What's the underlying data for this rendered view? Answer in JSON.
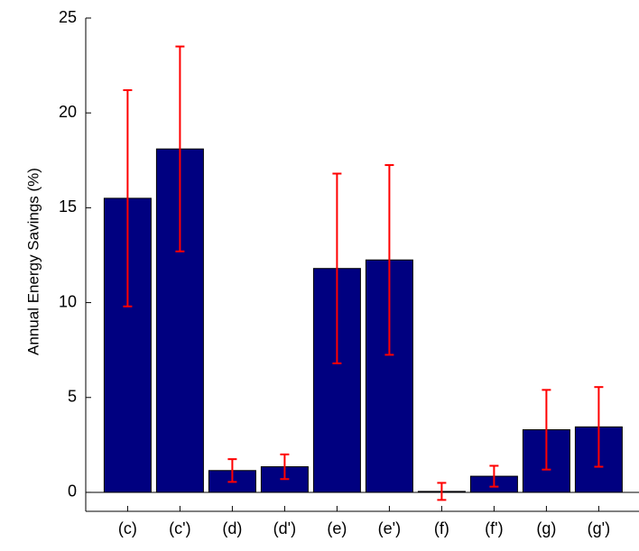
{
  "chart_data": {
    "type": "bar",
    "y_label": "Annual Energy Savings (%)",
    "categories": [
      "(c)",
      "(c')",
      "(d)",
      "(d')",
      "(e)",
      "(e')",
      "(f)",
      "(f')",
      "(g)",
      "(g')"
    ],
    "values": [
      15.5,
      18.1,
      1.15,
      1.35,
      11.8,
      12.25,
      0.05,
      0.85,
      3.3,
      3.45
    ],
    "errors": [
      5.7,
      5.4,
      0.6,
      0.65,
      5.0,
      5.0,
      0.45,
      0.55,
      2.1,
      2.1
    ],
    "color": "#000080",
    "error_color": "#ff0000",
    "ylim": [
      -1,
      25
    ],
    "yticks": [
      0,
      5,
      10,
      15,
      20,
      25
    ],
    "grid": false
  }
}
